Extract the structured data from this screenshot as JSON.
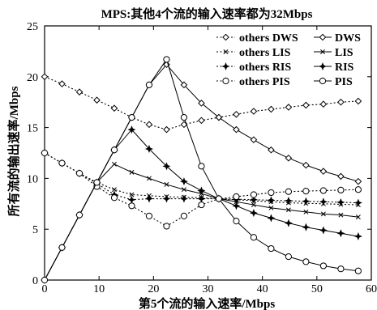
{
  "chart_data": {
    "type": "line",
    "title": "MPS:其他4个流的输入速率都为32Mbps",
    "xlabel": "第5个流的输入速率/Mbps",
    "ylabel": "所有流的输出速率/Mbps",
    "xlim": [
      0,
      60
    ],
    "ylim": [
      0,
      25
    ],
    "xticks": [
      0,
      10,
      20,
      30,
      40,
      50,
      60
    ],
    "yticks": [
      0,
      5,
      10,
      15,
      20,
      25
    ],
    "grid": false,
    "legend_position": "top-right",
    "legend": [
      {
        "left": "others DWS",
        "right": "DWS"
      },
      {
        "left": "others LIS",
        "right": "LIS"
      },
      {
        "left": "others RIS",
        "right": "RIS"
      },
      {
        "left": "others PIS",
        "right": "PIS"
      }
    ],
    "x": [
      0,
      3.2,
      6.4,
      9.6,
      12.8,
      16,
      19.2,
      22.4,
      25.6,
      28.8,
      32,
      35.2,
      38.4,
      41.6,
      44.8,
      48,
      51.2,
      54.4,
      57.6
    ],
    "series": [
      {
        "name": "others DWS",
        "style": "dotted",
        "marker": "diamond-open",
        "values": [
          20.0,
          19.3,
          18.5,
          17.7,
          16.9,
          16.0,
          15.3,
          14.8,
          15.3,
          15.7,
          16.0,
          16.3,
          16.6,
          16.8,
          17.0,
          17.2,
          17.3,
          17.5,
          17.6
        ]
      },
      {
        "name": "DWS",
        "style": "solid",
        "marker": "diamond-open",
        "values": [
          0,
          3.2,
          6.4,
          9.6,
          12.8,
          16.0,
          19.2,
          21.2,
          19.2,
          17.4,
          16.0,
          14.8,
          13.8,
          12.8,
          12.0,
          11.3,
          10.7,
          10.2,
          9.7
        ]
      },
      {
        "name": "others LIS",
        "style": "dotted",
        "marker": "x",
        "values": [
          12.5,
          11.5,
          10.5,
          9.6,
          8.9,
          8.4,
          8.3,
          8.2,
          8.15,
          8.1,
          8.0,
          7.9,
          7.8,
          7.7,
          7.6,
          7.55,
          7.5,
          7.45,
          7.4
        ]
      },
      {
        "name": "LIS",
        "style": "solid",
        "marker": "x",
        "values": [
          0,
          3.2,
          6.4,
          9.6,
          11.4,
          10.6,
          10.0,
          9.4,
          8.9,
          8.5,
          8.0,
          7.7,
          7.4,
          7.1,
          6.9,
          6.7,
          6.5,
          6.4,
          6.2
        ]
      },
      {
        "name": "others RIS",
        "style": "dotted",
        "marker": "star",
        "values": [
          12.5,
          11.5,
          10.5,
          9.5,
          8.4,
          7.9,
          8.0,
          8.0,
          8.0,
          8.0,
          8.0,
          7.95,
          7.9,
          7.85,
          7.8,
          7.75,
          7.7,
          7.65,
          7.6
        ]
      },
      {
        "name": "RIS",
        "style": "solid",
        "marker": "star",
        "values": [
          0,
          3.2,
          6.4,
          9.6,
          12.8,
          14.8,
          12.9,
          11.2,
          9.7,
          8.8,
          8.0,
          7.3,
          6.6,
          6.1,
          5.6,
          5.2,
          4.9,
          4.6,
          4.3
        ]
      },
      {
        "name": "others PIS",
        "style": "dotted",
        "marker": "circle-open",
        "values": [
          12.5,
          11.5,
          10.5,
          9.2,
          8.1,
          7.3,
          6.3,
          5.3,
          6.3,
          7.4,
          8.0,
          8.2,
          8.4,
          8.6,
          8.7,
          8.75,
          8.8,
          8.85,
          8.9
        ]
      },
      {
        "name": "PIS",
        "style": "solid",
        "marker": "circle-open",
        "values": [
          0,
          3.2,
          6.4,
          9.6,
          12.8,
          16.0,
          19.2,
          21.7,
          16.0,
          11.2,
          8.0,
          5.8,
          4.2,
          3.1,
          2.3,
          1.8,
          1.4,
          1.1,
          0.9
        ]
      }
    ]
  }
}
